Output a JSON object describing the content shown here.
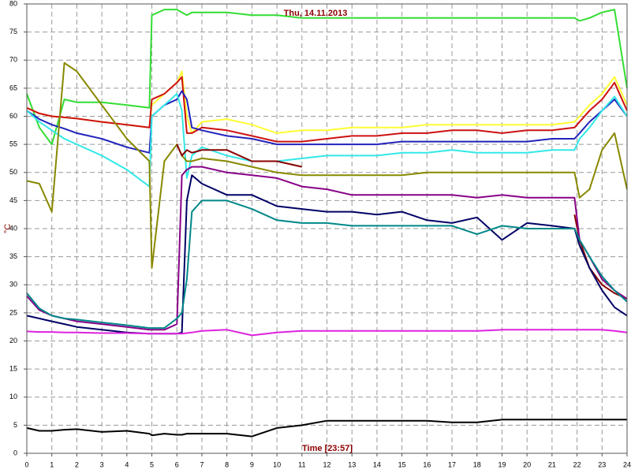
{
  "chart_data": {
    "type": "line",
    "title": "Thu, 14.11.2013",
    "xlabel": "Time [23:57]",
    "ylabel": "°C",
    "xlim": [
      0,
      24
    ],
    "ylim": [
      0,
      80
    ],
    "xticks": [
      0,
      1,
      2,
      3,
      4,
      5,
      6,
      7,
      8,
      9,
      10,
      11,
      12,
      13,
      14,
      15,
      16,
      17,
      18,
      19,
      20,
      21,
      22,
      23,
      24
    ],
    "yticks": [
      0,
      5,
      10,
      15,
      20,
      25,
      30,
      35,
      40,
      45,
      50,
      55,
      60,
      65,
      70,
      75,
      80
    ],
    "grid": true,
    "x": [
      0,
      0.5,
      1,
      1.5,
      2,
      3,
      4,
      4.9,
      5,
      5.5,
      6,
      6.2,
      6.4,
      6.6,
      7,
      8,
      9,
      10,
      11,
      12,
      13,
      14,
      15,
      16,
      17,
      18,
      19,
      20,
      21,
      21.9,
      22.1,
      22.5,
      23,
      23.5,
      24
    ],
    "series": [
      {
        "color": "#33dd33",
        "values": [
          64,
          58,
          55,
          63,
          62.5,
          62.5,
          62,
          61.5,
          78,
          79,
          79,
          78.5,
          78,
          78.5,
          78.5,
          78.5,
          78,
          78,
          77.5,
          77.5,
          77.5,
          77.5,
          77.5,
          77.5,
          77.5,
          77.5,
          77.5,
          77.5,
          77.5,
          77.5,
          77,
          77.5,
          78.5,
          79,
          65
        ]
      },
      {
        "color": "#ffff33",
        "values": [
          61.5,
          60.5,
          60,
          59.8,
          59.6,
          59,
          58.5,
          58,
          62,
          64,
          66,
          68,
          60,
          57,
          59,
          59.5,
          58.5,
          57,
          57.5,
          57.5,
          58,
          58,
          58,
          58.5,
          58.5,
          58.5,
          58.5,
          58.5,
          58.5,
          59,
          60,
          62,
          64,
          67,
          62
        ]
      },
      {
        "color": "#cc1111",
        "values": [
          61.5,
          60.5,
          60,
          59.8,
          59.6,
          59,
          58.5,
          58,
          63,
          64,
          66,
          67,
          57,
          57,
          58,
          57.5,
          56.5,
          55.5,
          55.5,
          56,
          56.5,
          56.5,
          57,
          57,
          57.5,
          57.5,
          57,
          57.5,
          57.5,
          58,
          59,
          61,
          63,
          66,
          61
        ]
      },
      {
        "color": "#2222bb",
        "values": [
          61,
          59.5,
          58.5,
          57.8,
          57,
          56,
          54.5,
          53.5,
          60,
          62,
          63,
          64.5,
          63,
          58,
          57.5,
          56.5,
          56,
          55,
          55,
          55,
          55,
          55,
          55.5,
          55.5,
          55.5,
          55.5,
          55.5,
          55.5,
          56,
          56,
          57,
          59,
          61,
          63,
          60
        ]
      },
      {
        "color": "#33e8e8",
        "values": [
          61,
          59,
          57.5,
          56,
          55,
          53,
          50.5,
          47.5,
          60,
          62,
          64,
          61,
          49,
          53,
          54.5,
          53,
          52,
          52,
          52.5,
          53,
          53,
          53,
          53.5,
          53.5,
          54,
          53.5,
          53.5,
          53.5,
          54,
          54,
          56,
          58,
          61,
          63.5,
          60
        ]
      },
      {
        "color": "#888800",
        "values": [
          48.5,
          48,
          43,
          69.5,
          68,
          62,
          56,
          52,
          33,
          52,
          55,
          53,
          52,
          52,
          52.5,
          52,
          51,
          50,
          49.5,
          49.5,
          49.5,
          49.5,
          49.5,
          50,
          50,
          50,
          50,
          50,
          50,
          50,
          45.5,
          47,
          54,
          57,
          47
        ]
      },
      {
        "color": "#880000",
        "values": [
          null,
          null,
          null,
          null,
          null,
          null,
          null,
          null,
          null,
          null,
          55,
          53,
          54,
          53.5,
          54,
          54,
          52,
          52,
          51,
          null,
          null,
          null,
          null,
          null,
          null,
          null,
          null,
          null,
          null,
          42.5,
          38,
          33,
          30,
          28.5,
          27.5
        ]
      },
      {
        "color": "#880088",
        "values": [
          28,
          25.5,
          24.5,
          24,
          23.5,
          23,
          22.5,
          22,
          22,
          22,
          23,
          49.5,
          50.5,
          51,
          51,
          50,
          49.5,
          49,
          47.5,
          47,
          46,
          46,
          46,
          46,
          46,
          45.5,
          46,
          45.5,
          45.5,
          45.5,
          38,
          35,
          31,
          29,
          27.5
        ]
      },
      {
        "color": "#000066",
        "values": [
          24.5,
          24,
          23.5,
          23,
          22.5,
          22,
          21.5,
          21.3,
          21.3,
          21.3,
          21.3,
          21.5,
          45,
          49.5,
          48,
          46,
          46,
          44,
          43.5,
          43,
          43,
          42.5,
          43,
          41.5,
          41,
          42,
          38,
          41,
          40.5,
          40,
          37,
          33,
          29,
          26,
          24.5
        ]
      },
      {
        "color": "#008888",
        "values": [
          28.5,
          25.8,
          24.5,
          24,
          23.8,
          23.3,
          22.8,
          22.3,
          22.3,
          22.3,
          24,
          25,
          31,
          43,
          45,
          45,
          43.5,
          41.5,
          41,
          41,
          40.5,
          40.5,
          40.5,
          40.5,
          40.5,
          39,
          40.5,
          40,
          40,
          40,
          38,
          35,
          31.5,
          29,
          27
        ]
      },
      {
        "color": "#dd22dd",
        "values": [
          21.7,
          21.6,
          21.6,
          21.5,
          21.5,
          21.4,
          21.4,
          21.3,
          21.3,
          21.3,
          21.3,
          21.3,
          21.4,
          21.5,
          21.8,
          22,
          21,
          21.5,
          21.8,
          21.8,
          21.8,
          21.8,
          21.8,
          21.8,
          21.8,
          21.8,
          22,
          22,
          22,
          22,
          22,
          22,
          22,
          21.8,
          21.5
        ]
      },
      {
        "color": "#000000",
        "values": [
          4.5,
          4,
          4,
          4.2,
          4.3,
          3.8,
          4,
          3.5,
          3.2,
          3.5,
          3.3,
          3.3,
          3.5,
          3.5,
          3.5,
          3.5,
          3,
          4.5,
          5,
          5.8,
          5.8,
          5.8,
          5.8,
          5.8,
          5.5,
          5.5,
          6,
          6,
          6,
          6,
          6,
          6,
          6,
          6,
          6
        ]
      }
    ]
  }
}
